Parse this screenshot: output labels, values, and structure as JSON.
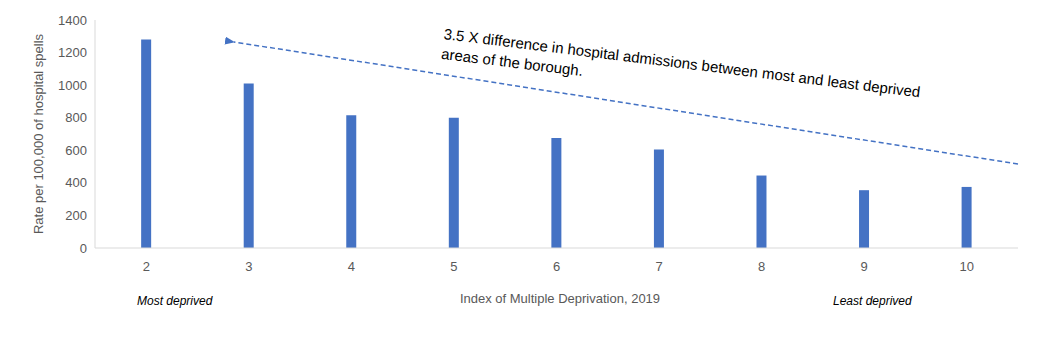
{
  "chart_data": {
    "type": "bar",
    "categories": [
      "2",
      "3",
      "4",
      "5",
      "6",
      "7",
      "8",
      "9",
      "10"
    ],
    "values": [
      1280,
      1010,
      815,
      800,
      675,
      605,
      445,
      355,
      375
    ],
    "color": "#4472c4",
    "ylim": [
      0,
      1400
    ],
    "yticks": [
      0,
      200,
      400,
      600,
      800,
      1000,
      1200,
      1400
    ],
    "grid": false,
    "x_label": "Index of Multiple Deprivation, 2019",
    "y_label": "Rate per 100,000 of hospital spells",
    "annotation": "3.5 X difference in hospital admissions between most and least deprived areas of the borough.",
    "x_low_label": "Most deprived",
    "x_high_label": "Least deprived"
  }
}
